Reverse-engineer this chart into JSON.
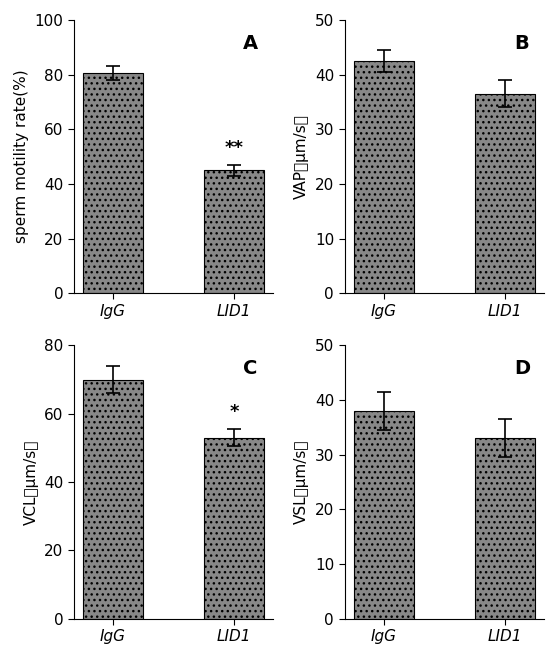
{
  "panels": [
    {
      "label": "A",
      "ylabel": "sperm motility rate(%)",
      "ylim": [
        0,
        100
      ],
      "yticks": [
        0,
        20,
        40,
        60,
        80,
        100
      ],
      "categories": [
        "IgG",
        "LID1"
      ],
      "values": [
        80.5,
        45.0
      ],
      "errors": [
        2.5,
        2.0
      ],
      "significance": [
        "",
        "**"
      ]
    },
    {
      "label": "B",
      "ylabel": "VAP（μm/s）",
      "ylim": [
        0,
        50
      ],
      "yticks": [
        0,
        10,
        20,
        30,
        40,
        50
      ],
      "categories": [
        "IgG",
        "LID1"
      ],
      "values": [
        42.5,
        36.5
      ],
      "errors": [
        2.0,
        2.5
      ],
      "significance": [
        "",
        ""
      ]
    },
    {
      "label": "C",
      "ylabel": "VCL（μm/s）",
      "ylim": [
        0,
        80
      ],
      "yticks": [
        0,
        20,
        40,
        60,
        80
      ],
      "categories": [
        "IgG",
        "LID1"
      ],
      "values": [
        70.0,
        53.0
      ],
      "errors": [
        4.0,
        2.5
      ],
      "significance": [
        "",
        "*"
      ]
    },
    {
      "label": "D",
      "ylabel": "VSL（μm/s）",
      "ylim": [
        0,
        50
      ],
      "yticks": [
        0,
        10,
        20,
        30,
        40,
        50
      ],
      "categories": [
        "IgG",
        "LID1"
      ],
      "values": [
        38.0,
        33.0
      ],
      "errors": [
        3.5,
        3.5
      ],
      "significance": [
        "",
        ""
      ]
    }
  ],
  "bar_color": "#888888",
  "hatch_pattern": "...",
  "bar_width": 0.5,
  "label_fontsize": 11,
  "tick_fontsize": 11,
  "panel_label_fontsize": 14,
  "sig_fontsize": 13,
  "background_color": "#ffffff",
  "fig_width": 5.58,
  "fig_height": 6.58,
  "dpi": 100
}
